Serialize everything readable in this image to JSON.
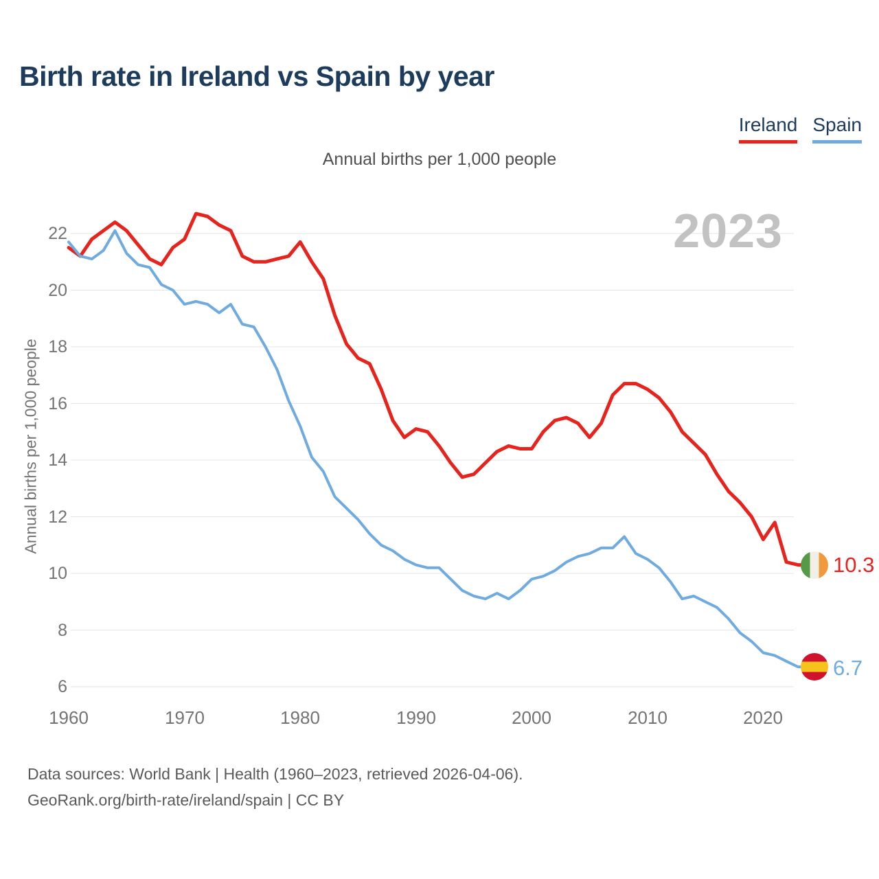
{
  "header": {
    "title": "Birth rate in Ireland vs Spain by year"
  },
  "legend": {
    "items": [
      {
        "label": "Ireland",
        "color": "#e6231c"
      },
      {
        "label": "Spain",
        "color": "#6fabdf"
      }
    ]
  },
  "subtitle": "Annual births per 1,000 people",
  "watermark_year": "2023",
  "y_axis_title": "Annual births per 1,000 people",
  "chart_data": {
    "type": "line",
    "title": "Birth rate in Ireland vs Spain by year",
    "ylabel": "Annual births per 1,000 people",
    "xlabel": "",
    "grid": "horizontal",
    "legend_position": "top-right",
    "xlim": [
      1960,
      2023
    ],
    "ylim": [
      6,
      23
    ],
    "xticks": [
      1960,
      1970,
      1980,
      1990,
      2000,
      2010,
      2020
    ],
    "yticks": [
      22,
      20,
      18,
      16,
      14,
      12,
      10,
      8,
      6
    ],
    "x": [
      1960,
      1961,
      1962,
      1963,
      1964,
      1965,
      1966,
      1967,
      1968,
      1969,
      1970,
      1971,
      1972,
      1973,
      1974,
      1975,
      1976,
      1977,
      1978,
      1979,
      1980,
      1981,
      1982,
      1983,
      1984,
      1985,
      1986,
      1987,
      1988,
      1989,
      1990,
      1991,
      1992,
      1993,
      1994,
      1995,
      1996,
      1997,
      1998,
      1999,
      2000,
      2001,
      2002,
      2003,
      2004,
      2005,
      2006,
      2007,
      2008,
      2009,
      2010,
      2011,
      2012,
      2013,
      2014,
      2015,
      2016,
      2017,
      2018,
      2019,
      2020,
      2021,
      2022,
      2023
    ],
    "series": [
      {
        "name": "Ireland",
        "color": "#e6231c",
        "end_label": "10.3",
        "flag_icon": "ireland-flag-icon",
        "values": [
          21.5,
          21.2,
          21.8,
          22.1,
          22.4,
          22.1,
          21.6,
          21.1,
          20.9,
          21.5,
          21.8,
          22.7,
          22.6,
          22.3,
          22.1,
          21.2,
          21.0,
          21.0,
          21.1,
          21.2,
          21.7,
          21.0,
          20.4,
          19.1,
          18.1,
          17.6,
          17.4,
          16.5,
          15.4,
          14.8,
          15.1,
          15.0,
          14.5,
          13.9,
          13.4,
          13.5,
          13.9,
          14.3,
          14.5,
          14.4,
          14.4,
          15.0,
          15.4,
          15.5,
          15.3,
          14.8,
          15.3,
          16.3,
          16.7,
          16.7,
          16.5,
          16.2,
          15.7,
          15.0,
          14.6,
          14.2,
          13.5,
          12.9,
          12.5,
          12.0,
          11.2,
          11.8,
          10.4,
          10.3
        ]
      },
      {
        "name": "Spain",
        "color": "#6fabdf",
        "end_label": "6.7",
        "flag_icon": "spain-flag-icon",
        "values": [
          21.7,
          21.2,
          21.1,
          21.4,
          22.1,
          21.3,
          20.9,
          20.8,
          20.2,
          20.0,
          19.5,
          19.6,
          19.5,
          19.2,
          19.5,
          18.8,
          18.7,
          18.0,
          17.2,
          16.1,
          15.2,
          14.1,
          13.6,
          12.7,
          12.3,
          11.9,
          11.4,
          11.0,
          10.8,
          10.5,
          10.3,
          10.2,
          10.2,
          9.8,
          9.4,
          9.2,
          9.1,
          9.3,
          9.1,
          9.4,
          9.8,
          9.9,
          10.1,
          10.4,
          10.6,
          10.7,
          10.9,
          10.9,
          11.3,
          10.7,
          10.5,
          10.2,
          9.7,
          9.1,
          9.2,
          9.0,
          8.8,
          8.4,
          7.9,
          7.6,
          7.2,
          7.1,
          6.9,
          6.7
        ]
      }
    ]
  },
  "footer": {
    "line1": "Data sources: World Bank | Health (1960–2023, retrieved 2026-04-06).",
    "line2": "GeoRank.org/birth-rate/ireland/spain | CC BY"
  }
}
